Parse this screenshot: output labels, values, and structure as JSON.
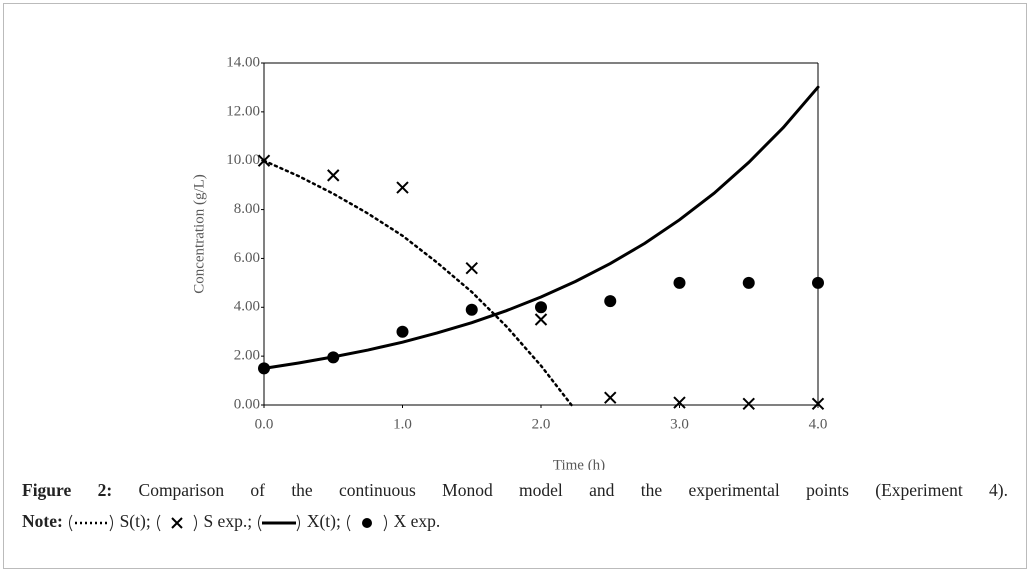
{
  "chart_data": {
    "type": "line",
    "xlabel": "Time (h)",
    "ylabel": "Concentration (g/L)",
    "xlim": [
      0,
      4
    ],
    "ylim": [
      0,
      14
    ],
    "xticks": [
      {
        "value": 0,
        "label": "0.0"
      },
      {
        "value": 1,
        "label": "1.0"
      },
      {
        "value": 2,
        "label": "2.0"
      },
      {
        "value": 3,
        "label": "3.0"
      },
      {
        "value": 4,
        "label": "4.0"
      }
    ],
    "yticks": [
      {
        "value": 0,
        "label": "0.00"
      },
      {
        "value": 2,
        "label": "2.00"
      },
      {
        "value": 4,
        "label": "4.00"
      },
      {
        "value": 6,
        "label": "6.00"
      },
      {
        "value": 8,
        "label": "8.00"
      },
      {
        "value": 10,
        "label": "10.00"
      },
      {
        "value": 12,
        "label": "12.00"
      },
      {
        "value": 14,
        "label": "14.00"
      }
    ],
    "grid": false,
    "series": [
      {
        "name": "S(t);",
        "style": "dotted",
        "color": "#000000",
        "x": [
          0,
          0.25,
          0.5,
          0.75,
          1.0,
          1.25,
          1.5,
          1.75,
          2.0,
          2.22
        ],
        "values": [
          10,
          9.37,
          8.65,
          7.84,
          6.93,
          5.83,
          4.63,
          3.22,
          1.61,
          0
        ]
      },
      {
        "name": "S exp.;",
        "style": "cross",
        "color": "#000000",
        "x": [
          0,
          0.5,
          1.0,
          1.5,
          2.0,
          2.5,
          3.0,
          3.5,
          4.0
        ],
        "values": [
          10.0,
          9.4,
          8.9,
          5.6,
          3.5,
          0.3,
          0.1,
          0.05,
          0.05
        ]
      },
      {
        "name": "X(t);",
        "style": "solid",
        "color": "#000000",
        "x": [
          0,
          0.25,
          0.5,
          0.75,
          1.0,
          1.25,
          1.5,
          1.75,
          2.0,
          2.25,
          2.5,
          2.75,
          3.0,
          3.25,
          3.5,
          3.75,
          4.0
        ],
        "values": [
          1.5,
          1.72,
          1.97,
          2.25,
          2.57,
          2.95,
          3.37,
          3.86,
          4.42,
          5.06,
          5.79,
          6.62,
          7.58,
          8.67,
          9.93,
          11.36,
          13.01
        ]
      },
      {
        "name": "X exp.",
        "style": "circle",
        "color": "#000000",
        "x": [
          0,
          0.5,
          1.0,
          1.5,
          2.0,
          2.5,
          3.0,
          3.5,
          4.0
        ],
        "values": [
          1.5,
          1.95,
          3.0,
          3.9,
          4.0,
          4.25,
          5.0,
          5.0,
          5.0
        ]
      }
    ]
  },
  "caption": {
    "label": "Figure 2:",
    "text": "Comparison of the continuous Monod model and the experimental points (Experiment 4).",
    "note_label": "Note:"
  }
}
